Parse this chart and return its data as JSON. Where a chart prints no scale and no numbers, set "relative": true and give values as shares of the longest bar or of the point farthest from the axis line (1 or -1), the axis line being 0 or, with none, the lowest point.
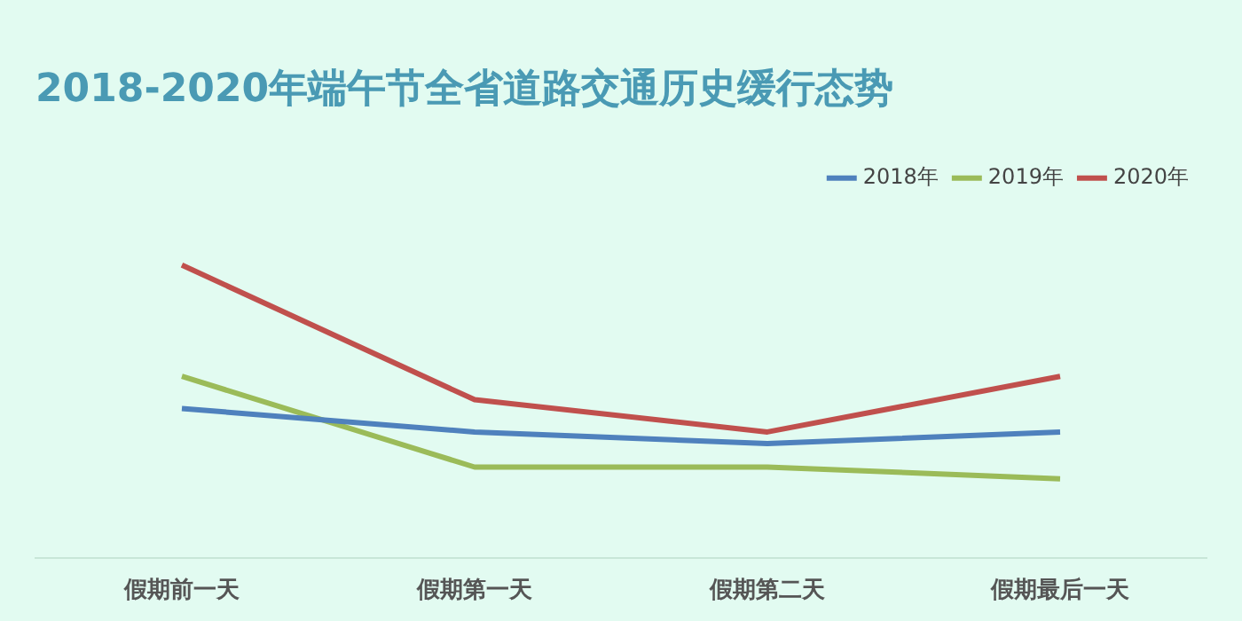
{
  "chart_data": {
    "type": "line",
    "title": "2018-2020年端午节全省道路交通历史缓行态势",
    "relative": true,
    "categories": [
      "假期前一天",
      "假期第一天",
      "假期第二天",
      "假期最后一天"
    ],
    "series": [
      {
        "name": "2018年",
        "color": "#4f81bd",
        "values": [
          0.51,
          0.43,
          0.39,
          0.43
        ]
      },
      {
        "name": "2019年",
        "color": "#9bbb59",
        "values": [
          0.62,
          0.31,
          0.31,
          0.27
        ]
      },
      {
        "name": "2020年",
        "color": "#c0504d",
        "values": [
          1,
          0.54,
          0.43,
          0.62
        ]
      }
    ],
    "legend": "top right",
    "grid": false,
    "marker": "none",
    "line_style": "solid"
  }
}
